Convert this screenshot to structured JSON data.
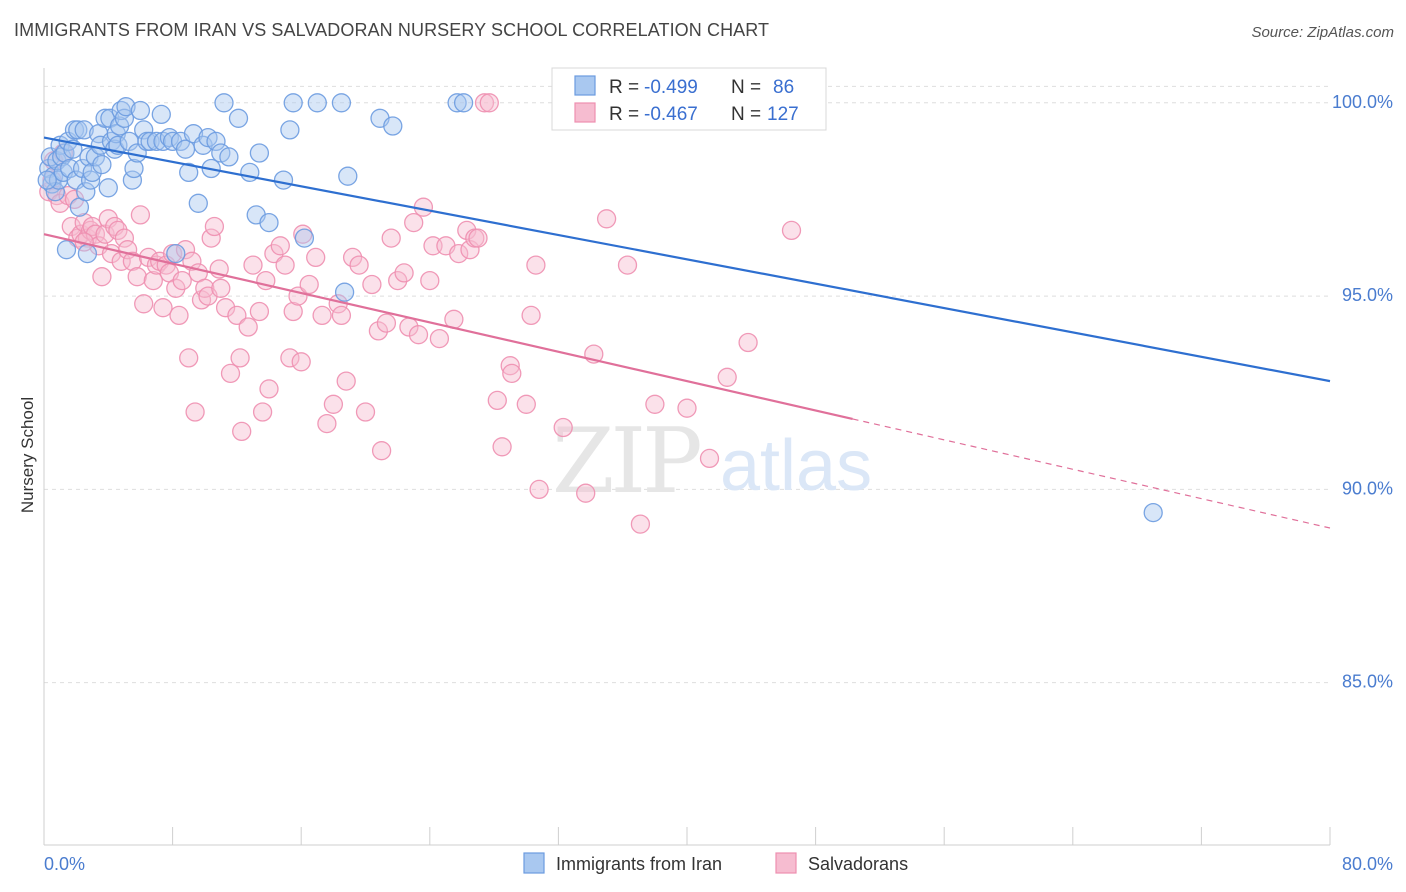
{
  "title": "IMMIGRANTS FROM IRAN VS SALVADORAN NURSERY SCHOOL CORRELATION CHART",
  "source": "Source: ZipAtlas.com",
  "watermark": {
    "zip": "ZIP",
    "atlas": "atlas"
  },
  "colors": {
    "series_a_fill": "#a9c8f0",
    "series_a_stroke": "#6b9be0",
    "series_a_line": "#2e6fd0",
    "series_b_fill": "#f6bcd0",
    "series_b_stroke": "#ee8fb0",
    "series_b_line": "#e0709a",
    "tick_text": "#4a7ccf"
  },
  "legend": {
    "rows": [
      {
        "r_label": "R =",
        "r_value": "-0.499",
        "n_label": "N =",
        "n_value": "86"
      },
      {
        "r_label": "R =",
        "r_value": "-0.467",
        "n_label": "N =",
        "n_value": "127"
      }
    ]
  },
  "chart_data": {
    "type": "scatter",
    "title": "IMMIGRANTS FROM IRAN VS SALVADORAN NURSERY SCHOOL CORRELATION CHART",
    "xlabel": "",
    "ylabel": "Nursery School",
    "xlim": [
      0,
      80
    ],
    "ylim": [
      80.8,
      100.9
    ],
    "x_ticks": [
      0,
      8,
      16,
      24,
      32,
      40,
      48,
      56,
      64,
      72,
      80
    ],
    "x_tick_labels": {
      "0": "0.0%",
      "80": "80.0%"
    },
    "y_ticks": [
      85,
      90,
      95,
      100
    ],
    "y_tick_labels": [
      "85.0%",
      "90.0%",
      "95.0%",
      "100.0%"
    ],
    "grid": true,
    "legend_position": "bottom",
    "series": [
      {
        "name": "Immigrants from Iran",
        "r": -0.499,
        "n": 86,
        "trend": {
          "x0": 0,
          "y0": 99.1,
          "x1": 80,
          "y1": 92.8,
          "solid_until": 80
        },
        "points": [
          [
            0.3,
            98.3
          ],
          [
            0.4,
            98.6
          ],
          [
            0.5,
            97.9
          ],
          [
            0.6,
            98.1
          ],
          [
            0.7,
            97.7
          ],
          [
            0.8,
            98.5
          ],
          [
            0.9,
            98.0
          ],
          [
            1.0,
            98.9
          ],
          [
            1.1,
            98.6
          ],
          [
            1.2,
            98.2
          ],
          [
            1.3,
            98.7
          ],
          [
            1.4,
            96.2
          ],
          [
            1.5,
            99.0
          ],
          [
            1.6,
            98.3
          ],
          [
            1.8,
            98.8
          ],
          [
            1.9,
            99.3
          ],
          [
            2.0,
            98.0
          ],
          [
            2.1,
            99.3
          ],
          [
            2.2,
            97.3
          ],
          [
            2.4,
            98.3
          ],
          [
            2.5,
            99.3
          ],
          [
            2.6,
            97.7
          ],
          [
            2.7,
            96.1
          ],
          [
            2.8,
            98.6
          ],
          [
            2.9,
            98.0
          ],
          [
            3.0,
            98.2
          ],
          [
            3.2,
            98.6
          ],
          [
            3.4,
            99.2
          ],
          [
            3.5,
            98.9
          ],
          [
            3.6,
            98.4
          ],
          [
            3.8,
            99.6
          ],
          [
            4.0,
            97.8
          ],
          [
            4.1,
            99.6
          ],
          [
            4.2,
            99.0
          ],
          [
            4.4,
            98.8
          ],
          [
            4.5,
            99.2
          ],
          [
            4.6,
            98.9
          ],
          [
            4.7,
            99.4
          ],
          [
            4.8,
            99.8
          ],
          [
            5.0,
            99.6
          ],
          [
            5.1,
            99.9
          ],
          [
            5.3,
            99.0
          ],
          [
            5.5,
            98.0
          ],
          [
            5.6,
            98.3
          ],
          [
            5.8,
            98.7
          ],
          [
            6.0,
            99.8
          ],
          [
            6.2,
            99.3
          ],
          [
            6.4,
            99.0
          ],
          [
            6.6,
            99.0
          ],
          [
            7.0,
            99.0
          ],
          [
            7.3,
            99.7
          ],
          [
            7.4,
            99.0
          ],
          [
            7.8,
            99.1
          ],
          [
            8.0,
            99.0
          ],
          [
            8.2,
            96.1
          ],
          [
            8.5,
            99.0
          ],
          [
            8.8,
            98.8
          ],
          [
            9.0,
            98.2
          ],
          [
            9.3,
            99.2
          ],
          [
            9.6,
            97.4
          ],
          [
            9.9,
            98.9
          ],
          [
            10.2,
            99.1
          ],
          [
            10.4,
            98.3
          ],
          [
            10.7,
            99.0
          ],
          [
            11.0,
            98.7
          ],
          [
            11.2,
            100.0
          ],
          [
            11.5,
            98.6
          ],
          [
            12.1,
            99.6
          ],
          [
            12.8,
            98.2
          ],
          [
            13.2,
            97.1
          ],
          [
            13.4,
            98.7
          ],
          [
            14.0,
            96.9
          ],
          [
            14.9,
            98.0
          ],
          [
            15.3,
            99.3
          ],
          [
            15.5,
            100.0
          ],
          [
            16.2,
            96.5
          ],
          [
            17.0,
            100.0
          ],
          [
            18.5,
            100.0
          ],
          [
            18.7,
            95.1
          ],
          [
            18.9,
            98.1
          ],
          [
            20.9,
            99.6
          ],
          [
            21.7,
            99.4
          ],
          [
            25.7,
            100.0
          ],
          [
            26.1,
            100.0
          ],
          [
            69.0,
            89.4
          ],
          [
            0.2,
            98.0
          ]
        ]
      },
      {
        "name": "Salvadorans",
        "r": -0.467,
        "n": 127,
        "trend": {
          "x0": 0,
          "y0": 96.6,
          "x1": 80,
          "y1": 89.0,
          "solid_until": 50.3
        },
        "points": [
          [
            0.3,
            97.7
          ],
          [
            0.5,
            98.0
          ],
          [
            0.6,
            98.5
          ],
          [
            0.8,
            97.6
          ],
          [
            1.0,
            97.4
          ],
          [
            1.2,
            98.7
          ],
          [
            1.5,
            97.6
          ],
          [
            1.7,
            96.8
          ],
          [
            1.9,
            97.5
          ],
          [
            2.1,
            96.5
          ],
          [
            2.3,
            96.6
          ],
          [
            2.5,
            96.9
          ],
          [
            2.7,
            96.5
          ],
          [
            2.9,
            96.7
          ],
          [
            3.0,
            96.8
          ],
          [
            3.2,
            96.6
          ],
          [
            3.4,
            96.3
          ],
          [
            3.6,
            95.5
          ],
          [
            3.8,
            96.6
          ],
          [
            4.0,
            97.0
          ],
          [
            4.2,
            96.1
          ],
          [
            4.4,
            96.8
          ],
          [
            4.6,
            96.7
          ],
          [
            4.8,
            95.9
          ],
          [
            5.0,
            96.5
          ],
          [
            5.2,
            96.2
          ],
          [
            5.5,
            95.9
          ],
          [
            5.8,
            95.5
          ],
          [
            6.0,
            97.1
          ],
          [
            6.2,
            94.8
          ],
          [
            6.5,
            96.0
          ],
          [
            6.8,
            95.4
          ],
          [
            7.0,
            95.8
          ],
          [
            7.2,
            95.9
          ],
          [
            7.4,
            94.7
          ],
          [
            7.6,
            95.8
          ],
          [
            7.8,
            95.6
          ],
          [
            8.0,
            96.1
          ],
          [
            8.2,
            95.2
          ],
          [
            8.4,
            94.5
          ],
          [
            8.6,
            95.4
          ],
          [
            8.8,
            96.2
          ],
          [
            9.0,
            93.4
          ],
          [
            9.2,
            95.9
          ],
          [
            9.4,
            92.0
          ],
          [
            9.6,
            95.6
          ],
          [
            9.8,
            94.9
          ],
          [
            10.0,
            95.2
          ],
          [
            10.2,
            95.0
          ],
          [
            10.4,
            96.5
          ],
          [
            10.6,
            96.8
          ],
          [
            10.9,
            95.7
          ],
          [
            11.0,
            95.2
          ],
          [
            11.3,
            94.7
          ],
          [
            11.6,
            93.0
          ],
          [
            12.0,
            94.5
          ],
          [
            12.2,
            93.4
          ],
          [
            12.3,
            91.5
          ],
          [
            12.7,
            94.2
          ],
          [
            13.0,
            95.8
          ],
          [
            13.4,
            94.6
          ],
          [
            13.6,
            92.0
          ],
          [
            13.8,
            95.4
          ],
          [
            14.0,
            92.6
          ],
          [
            14.3,
            96.1
          ],
          [
            14.7,
            96.3
          ],
          [
            15.0,
            95.8
          ],
          [
            15.3,
            93.4
          ],
          [
            15.5,
            94.6
          ],
          [
            15.8,
            95.0
          ],
          [
            16.1,
            96.6
          ],
          [
            16.5,
            95.3
          ],
          [
            16.9,
            96.0
          ],
          [
            17.3,
            94.5
          ],
          [
            17.6,
            91.7
          ],
          [
            18.0,
            92.2
          ],
          [
            18.3,
            94.8
          ],
          [
            18.5,
            94.5
          ],
          [
            18.8,
            92.8
          ],
          [
            19.2,
            96.0
          ],
          [
            19.6,
            95.8
          ],
          [
            20.0,
            92.0
          ],
          [
            20.4,
            95.3
          ],
          [
            20.8,
            94.1
          ],
          [
            21.0,
            91.0
          ],
          [
            21.3,
            94.3
          ],
          [
            21.6,
            96.5
          ],
          [
            22.0,
            95.4
          ],
          [
            22.4,
            95.6
          ],
          [
            22.7,
            94.2
          ],
          [
            23.0,
            96.9
          ],
          [
            23.3,
            94.0
          ],
          [
            23.6,
            97.3
          ],
          [
            24.0,
            95.4
          ],
          [
            24.2,
            96.3
          ],
          [
            24.6,
            93.9
          ],
          [
            25.0,
            96.3
          ],
          [
            25.5,
            94.4
          ],
          [
            25.8,
            96.1
          ],
          [
            26.3,
            96.7
          ],
          [
            26.5,
            96.2
          ],
          [
            26.8,
            96.5
          ],
          [
            27.0,
            96.5
          ],
          [
            27.4,
            100.0
          ],
          [
            27.7,
            100.0
          ],
          [
            28.2,
            92.3
          ],
          [
            28.5,
            91.1
          ],
          [
            29.0,
            93.2
          ],
          [
            29.1,
            93.0
          ],
          [
            30.0,
            92.2
          ],
          [
            30.3,
            94.5
          ],
          [
            30.6,
            95.8
          ],
          [
            30.8,
            90.0
          ],
          [
            32.3,
            91.6
          ],
          [
            33.7,
            89.9
          ],
          [
            34.2,
            93.5
          ],
          [
            35.0,
            97.0
          ],
          [
            36.3,
            95.8
          ],
          [
            37.1,
            89.1
          ],
          [
            38.0,
            92.2
          ],
          [
            40.0,
            92.1
          ],
          [
            41.4,
            90.8
          ],
          [
            42.5,
            92.9
          ],
          [
            43.8,
            93.8
          ],
          [
            46.5,
            96.7
          ],
          [
            16.0,
            93.3
          ],
          [
            2.5,
            96.4
          ]
        ]
      }
    ]
  }
}
